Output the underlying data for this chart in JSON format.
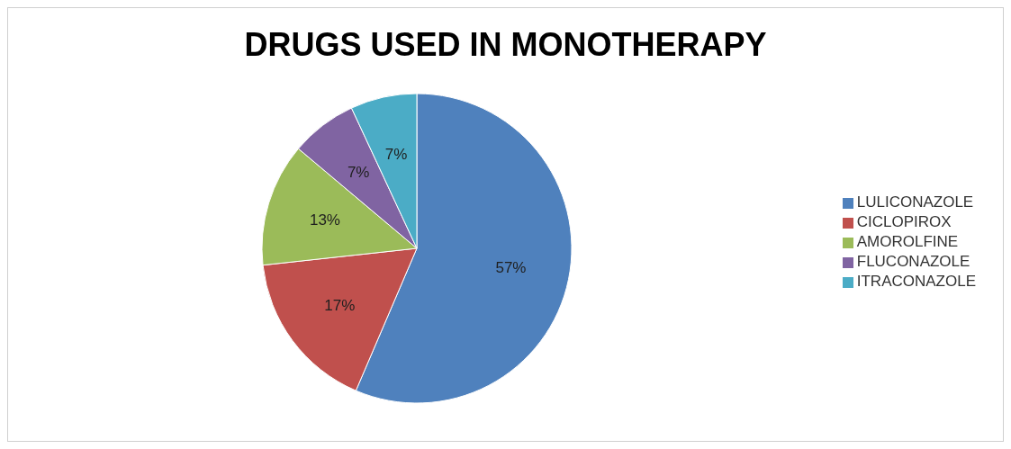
{
  "chart_data": {
    "type": "pie",
    "title": "DRUGS USED IN MONOTHERAPY",
    "categories": [
      "LULICONAZOLE",
      "CICLOPIROX",
      "AMOROLFINE",
      "FLUCONAZOLE",
      "ITRACONAZOLE"
    ],
    "values": [
      57,
      17,
      13,
      7,
      7
    ],
    "value_labels": [
      "57%",
      "17%",
      "13%",
      "7%",
      "7%"
    ],
    "colors": [
      "#4f81bd",
      "#c0504d",
      "#9bbb59",
      "#8064a2",
      "#4bacc6"
    ],
    "legend": "right"
  }
}
